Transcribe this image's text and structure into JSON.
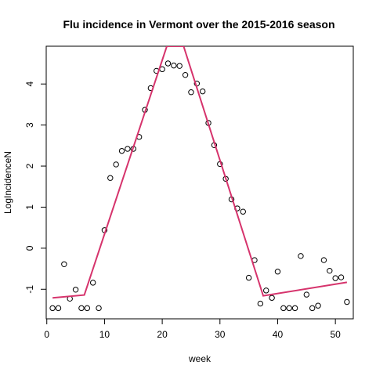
{
  "chart_data": {
    "type": "scatter",
    "title": "Flu incidence in Vermont over the 2015-2016 season",
    "xlabel": "week",
    "ylabel": "LogIncidenceN",
    "xlim": [
      -0.1,
      53.1
    ],
    "ylim": [
      -1.72,
      4.92
    ],
    "xticks": [
      0,
      10,
      20,
      30,
      40,
      50
    ],
    "yticks": [
      -1,
      0,
      1,
      2,
      3,
      4
    ],
    "grid": false,
    "series": [
      {
        "kind": "points",
        "x": [
          1,
          2,
          3,
          4,
          5,
          6,
          7,
          8,
          9,
          10,
          11,
          12,
          13,
          14,
          15,
          16,
          17,
          18,
          19,
          20,
          21,
          22,
          23,
          24,
          25,
          26,
          27,
          28,
          29,
          30,
          31,
          32,
          33,
          34,
          35,
          36,
          37,
          38,
          39,
          40,
          41,
          42,
          43,
          44,
          45,
          46,
          47,
          48,
          49,
          50,
          51,
          52
        ],
        "y": [
          -1.46,
          -1.46,
          -0.39,
          -1.23,
          -1.01,
          -1.46,
          -1.46,
          -0.84,
          -1.46,
          0.44,
          1.71,
          2.04,
          2.37,
          2.42,
          2.42,
          2.71,
          3.37,
          3.9,
          4.32,
          4.36,
          4.5,
          4.45,
          4.44,
          4.22,
          3.8,
          4.01,
          3.82,
          3.05,
          2.51,
          2.05,
          1.69,
          1.19,
          0.97,
          0.89,
          -0.72,
          -0.29,
          -1.35,
          -1.03,
          -1.21,
          -0.57,
          -1.46,
          -1.46,
          -1.46,
          -0.19,
          -1.13,
          -1.46,
          -1.4,
          -0.29,
          -0.55,
          -0.73,
          -0.71,
          -1.31
        ]
      },
      {
        "kind": "line",
        "color": "#d6336c",
        "x": [
          1,
          6.5,
          20.8,
          23.7,
          37.5,
          52
        ],
        "y": [
          -1.21,
          -1.14,
          4.92,
          4.92,
          -1.16,
          -0.83
        ]
      }
    ]
  }
}
